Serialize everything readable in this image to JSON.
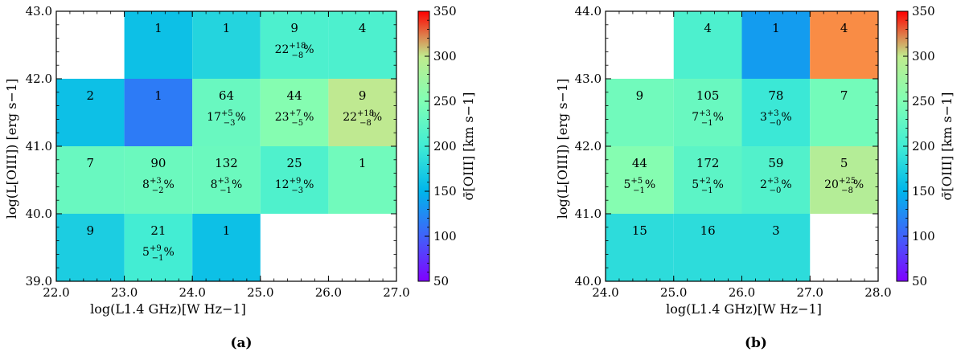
{
  "colorbar": {
    "label": "σ̄[OIII] [km s−1]",
    "ticks": [
      "50",
      "100",
      "150",
      "200",
      "250",
      "300",
      "350"
    ],
    "range": [
      50,
      350
    ],
    "colormap": "rainbow"
  },
  "chart_data": [
    {
      "type": "heatmap",
      "panel_label": "(a)",
      "xlabel": "log(L1.4 GHz)[W Hz−1]",
      "ylabel": "log(L[OIII]) [erg s−1]",
      "xlim": [
        22.0,
        27.0
      ],
      "ylim": [
        39.0,
        43.0
      ],
      "x_ticks": [
        "22.0",
        "23.0",
        "24.0",
        "25.0",
        "26.0",
        "27.0"
      ],
      "y_ticks": [
        "39.0",
        "40.0",
        "41.0",
        "42.0",
        "43.0"
      ],
      "cells": [
        {
          "x": [
            23,
            24
          ],
          "y": [
            42,
            43
          ],
          "value": 160,
          "count": "1"
        },
        {
          "x": [
            24,
            25
          ],
          "y": [
            42,
            43
          ],
          "value": 178,
          "count": "1"
        },
        {
          "x": [
            25,
            26
          ],
          "y": [
            42,
            43
          ],
          "value": 210,
          "count": "9",
          "pct": {
            "v": "22",
            "up": "+18",
            "lo": "−8"
          }
        },
        {
          "x": [
            26,
            27
          ],
          "y": [
            42,
            43
          ],
          "value": 210,
          "count": "4"
        },
        {
          "x": [
            22,
            23
          ],
          "y": [
            41,
            42
          ],
          "value": 160,
          "count": "2"
        },
        {
          "x": [
            23,
            24
          ],
          "y": [
            41,
            42
          ],
          "value": 115,
          "count": "1"
        },
        {
          "x": [
            24,
            25
          ],
          "y": [
            41,
            42
          ],
          "value": 232,
          "count": "64",
          "pct": {
            "v": "17",
            "up": "+5",
            "lo": "−3"
          }
        },
        {
          "x": [
            25,
            26
          ],
          "y": [
            41,
            42
          ],
          "value": 252,
          "count": "44",
          "pct": {
            "v": "23",
            "up": "+7",
            "lo": "−5"
          }
        },
        {
          "x": [
            26,
            27
          ],
          "y": [
            41,
            42
          ],
          "value": 272,
          "count": "9",
          "pct": {
            "v": "22",
            "up": "+18",
            "lo": "−8"
          }
        },
        {
          "x": [
            22,
            23
          ],
          "y": [
            40,
            41
          ],
          "value": 232,
          "count": "7"
        },
        {
          "x": [
            23,
            24
          ],
          "y": [
            40,
            41
          ],
          "value": 234,
          "count": "90",
          "pct": {
            "v": "8",
            "up": "+3",
            "lo": "−2"
          }
        },
        {
          "x": [
            24,
            25
          ],
          "y": [
            40,
            41
          ],
          "value": 234,
          "count": "132",
          "pct": {
            "v": "8",
            "up": "+3",
            "lo": "−1"
          }
        },
        {
          "x": [
            25,
            26
          ],
          "y": [
            40,
            41
          ],
          "value": 212,
          "count": "25",
          "pct": {
            "v": "12",
            "up": "+9",
            "lo": "−3"
          }
        },
        {
          "x": [
            26,
            27
          ],
          "y": [
            40,
            41
          ],
          "value": 238,
          "count": "1"
        },
        {
          "x": [
            22,
            23
          ],
          "y": [
            39,
            40
          ],
          "value": 172,
          "count": "9"
        },
        {
          "x": [
            23,
            24
          ],
          "y": [
            39,
            40
          ],
          "value": 202,
          "count": "21",
          "pct": {
            "v": "5",
            "up": "+9",
            "lo": "−1"
          }
        },
        {
          "x": [
            24,
            25
          ],
          "y": [
            39,
            40
          ],
          "value": 160,
          "count": "1"
        }
      ]
    },
    {
      "type": "heatmap",
      "panel_label": "(b)",
      "xlabel": "log(L1.4 GHz)[W Hz−1]",
      "ylabel": "log(L[OIII]) [erg s−1]",
      "xlim": [
        24.0,
        28.0
      ],
      "ylim": [
        40.0,
        44.0
      ],
      "x_ticks": [
        "24.0",
        "25.0",
        "26.0",
        "27.0",
        "28.0"
      ],
      "y_ticks": [
        "40.0",
        "41.0",
        "42.0",
        "43.0",
        "44.0"
      ],
      "cells": [
        {
          "x": [
            25,
            26
          ],
          "y": [
            43,
            44
          ],
          "value": 210,
          "count": "4"
        },
        {
          "x": [
            26,
            27
          ],
          "y": [
            43,
            44
          ],
          "value": 135,
          "count": "1"
        },
        {
          "x": [
            27,
            28
          ],
          "y": [
            43,
            44
          ],
          "value": 318,
          "count": "4"
        },
        {
          "x": [
            24,
            25
          ],
          "y": [
            42,
            43
          ],
          "value": 238,
          "count": "9"
        },
        {
          "x": [
            25,
            26
          ],
          "y": [
            42,
            43
          ],
          "value": 232,
          "count": "105",
          "pct": {
            "v": "7",
            "up": "+3",
            "lo": "−1"
          }
        },
        {
          "x": [
            26,
            27
          ],
          "y": [
            42,
            43
          ],
          "value": 196,
          "count": "78",
          "pct": {
            "v": "3",
            "up": "+3",
            "lo": "−0"
          }
        },
        {
          "x": [
            27,
            28
          ],
          "y": [
            42,
            43
          ],
          "value": 240,
          "count": "7"
        },
        {
          "x": [
            24,
            25
          ],
          "y": [
            41,
            42
          ],
          "value": 252,
          "count": "44",
          "pct": {
            "v": "5",
            "up": "+5",
            "lo": "−1"
          }
        },
        {
          "x": [
            25,
            26
          ],
          "y": [
            41,
            42
          ],
          "value": 222,
          "count": "172",
          "pct": {
            "v": "5",
            "up": "+2",
            "lo": "−1"
          }
        },
        {
          "x": [
            26,
            27
          ],
          "y": [
            41,
            42
          ],
          "value": 214,
          "count": "59",
          "pct": {
            "v": "2",
            "up": "+3",
            "lo": "−0"
          }
        },
        {
          "x": [
            27,
            28
          ],
          "y": [
            41,
            42
          ],
          "value": 268,
          "count": "5",
          "pct": {
            "v": "20",
            "up": "+25",
            "lo": "−8"
          }
        },
        {
          "x": [
            24,
            25
          ],
          "y": [
            40,
            41
          ],
          "value": 185,
          "count": "15"
        },
        {
          "x": [
            25,
            26
          ],
          "y": [
            40,
            41
          ],
          "value": 185,
          "count": "16"
        },
        {
          "x": [
            26,
            27
          ],
          "y": [
            40,
            41
          ],
          "value": 185,
          "count": "3"
        }
      ]
    }
  ]
}
